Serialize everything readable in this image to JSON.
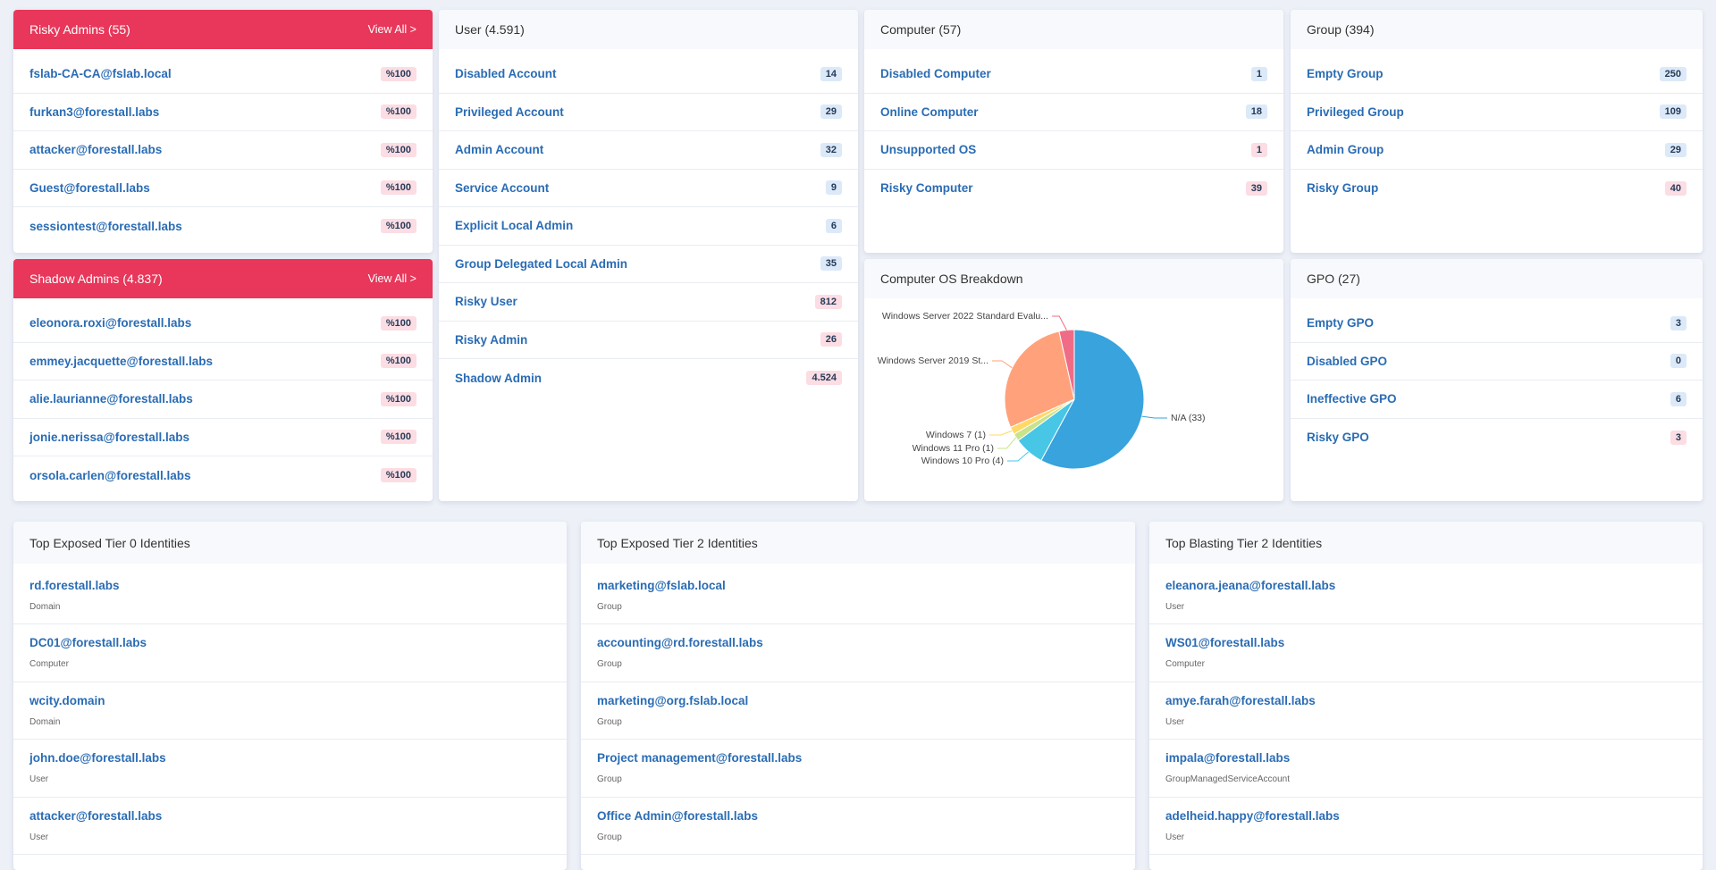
{
  "risky_admins": {
    "title": "Risky Admins (55)",
    "link": "View All >",
    "items": [
      {
        "name": "fslab-CA-CA@fslab.local",
        "badge": "%100",
        "badge_color": "#fbdde3"
      },
      {
        "name": "furkan3@forestall.labs",
        "badge": "%100",
        "badge_color": "#fbdde3"
      },
      {
        "name": "attacker@forestall.labs",
        "badge": "%100",
        "badge_color": "#fbdde3"
      },
      {
        "name": "Guest@forestall.labs",
        "badge": "%100",
        "badge_color": "#fbdde3"
      },
      {
        "name": "sessiontest@forestall.labs",
        "badge": "%100",
        "badge_color": "#fbdde3"
      }
    ]
  },
  "shadow_admins": {
    "title": "Shadow Admins (4.837)",
    "link": "View All >",
    "items": [
      {
        "name": "eleonora.roxi@forestall.labs",
        "badge": "%100",
        "badge_color": "#fbdde3"
      },
      {
        "name": "emmey.jacquette@forestall.labs",
        "badge": "%100",
        "badge_color": "#fbdde3"
      },
      {
        "name": "alie.laurianne@forestall.labs",
        "badge": "%100",
        "badge_color": "#fbdde3"
      },
      {
        "name": "jonie.nerissa@forestall.labs",
        "badge": "%100",
        "badge_color": "#fbdde3"
      },
      {
        "name": "orsola.carlen@forestall.labs",
        "badge": "%100",
        "badge_color": "#fbdde3"
      }
    ]
  },
  "user": {
    "title": "User (4.591)",
    "items": [
      {
        "name": "Disabled Account",
        "badge": "14",
        "badge_color": "#dce9f8"
      },
      {
        "name": "Privileged Account",
        "badge": "29",
        "badge_color": "#dce9f8"
      },
      {
        "name": "Admin Account",
        "badge": "32",
        "badge_color": "#dce9f8"
      },
      {
        "name": "Service Account",
        "badge": "9",
        "badge_color": "#dce9f8"
      },
      {
        "name": "Explicit Local Admin",
        "badge": "6",
        "badge_color": "#dce9f8"
      },
      {
        "name": "Group Delegated Local Admin",
        "badge": "35",
        "badge_color": "#dce9f8"
      },
      {
        "name": "Risky User",
        "badge": "812",
        "badge_color": "#fbdde3"
      },
      {
        "name": "Risky Admin",
        "badge": "26",
        "badge_color": "#fbdde3"
      },
      {
        "name": "Shadow Admin",
        "badge": "4.524",
        "badge_color": "#fbdde3"
      }
    ]
  },
  "computer": {
    "title": "Computer (57)",
    "items": [
      {
        "name": "Disabled Computer",
        "badge": "1",
        "badge_color": "#dce9f8"
      },
      {
        "name": "Online Computer",
        "badge": "18",
        "badge_color": "#dce9f8"
      },
      {
        "name": "Unsupported OS",
        "badge": "1",
        "badge_color": "#fbdde3"
      },
      {
        "name": "Risky Computer",
        "badge": "39",
        "badge_color": "#fbdde3"
      }
    ]
  },
  "group": {
    "title": "Group (394)",
    "items": [
      {
        "name": "Empty Group",
        "badge": "250",
        "badge_color": "#dce9f8"
      },
      {
        "name": "Privileged Group",
        "badge": "109",
        "badge_color": "#dce9f8"
      },
      {
        "name": "Admin Group",
        "badge": "29",
        "badge_color": "#dce9f8"
      },
      {
        "name": "Risky Group",
        "badge": "40",
        "badge_color": "#fbdde3"
      }
    ]
  },
  "os_breakdown": {
    "title": "Computer OS Breakdown",
    "type": "pie",
    "labels": [
      "N/A (33)",
      "Windows 10 Pro (4)",
      "Windows 11 Pro (1)",
      "Windows 7 (1)",
      "Windows Server 2019 St...",
      "Windows Server 2022 Standard Evalu..."
    ],
    "values": [
      33,
      4,
      1,
      1,
      16,
      2
    ],
    "colors": [
      "#38a3dd",
      "#47c6e6",
      "#c9e38c",
      "#ffd866",
      "#ffa27c",
      "#f06c86"
    ]
  },
  "gpo": {
    "title": "GPO (27)",
    "items": [
      {
        "name": "Empty GPO",
        "badge": "3",
        "badge_color": "#dce9f8"
      },
      {
        "name": "Disabled GPO",
        "badge": "0",
        "badge_color": "#dce9f8"
      },
      {
        "name": "Ineffective GPO",
        "badge": "6",
        "badge_color": "#dce9f8"
      },
      {
        "name": "Risky GPO",
        "badge": "3",
        "badge_color": "#fbdde3"
      }
    ]
  },
  "tier0": {
    "title": "Top Exposed Tier 0 Identities",
    "items": [
      {
        "name": "rd.forestall.labs",
        "type": "Domain"
      },
      {
        "name": "DC01@forestall.labs",
        "type": "Computer"
      },
      {
        "name": "wcity.domain",
        "type": "Domain"
      },
      {
        "name": "john.doe@forestall.labs",
        "type": "User"
      },
      {
        "name": "attacker@forestall.labs",
        "type": "User"
      }
    ]
  },
  "tier2": {
    "title": "Top Exposed Tier 2 Identities",
    "items": [
      {
        "name": "marketing@fslab.local",
        "type": "Group"
      },
      {
        "name": "accounting@rd.forestall.labs",
        "type": "Group"
      },
      {
        "name": "marketing@org.fslab.local",
        "type": "Group"
      },
      {
        "name": "Project management@forestall.labs",
        "type": "Group"
      },
      {
        "name": "Office Admin@forestall.labs",
        "type": "Group"
      }
    ]
  },
  "blasting": {
    "title": "Top Blasting Tier 2 Identities",
    "items": [
      {
        "name": "eleanora.jeana@forestall.labs",
        "type": "User"
      },
      {
        "name": "WS01@forestall.labs",
        "type": "Computer"
      },
      {
        "name": "amye.farah@forestall.labs",
        "type": "User"
      },
      {
        "name": "impala@forestall.labs",
        "type": "GroupManagedServiceAccount"
      },
      {
        "name": "adelheid.happy@forestall.labs",
        "type": "User"
      }
    ]
  }
}
